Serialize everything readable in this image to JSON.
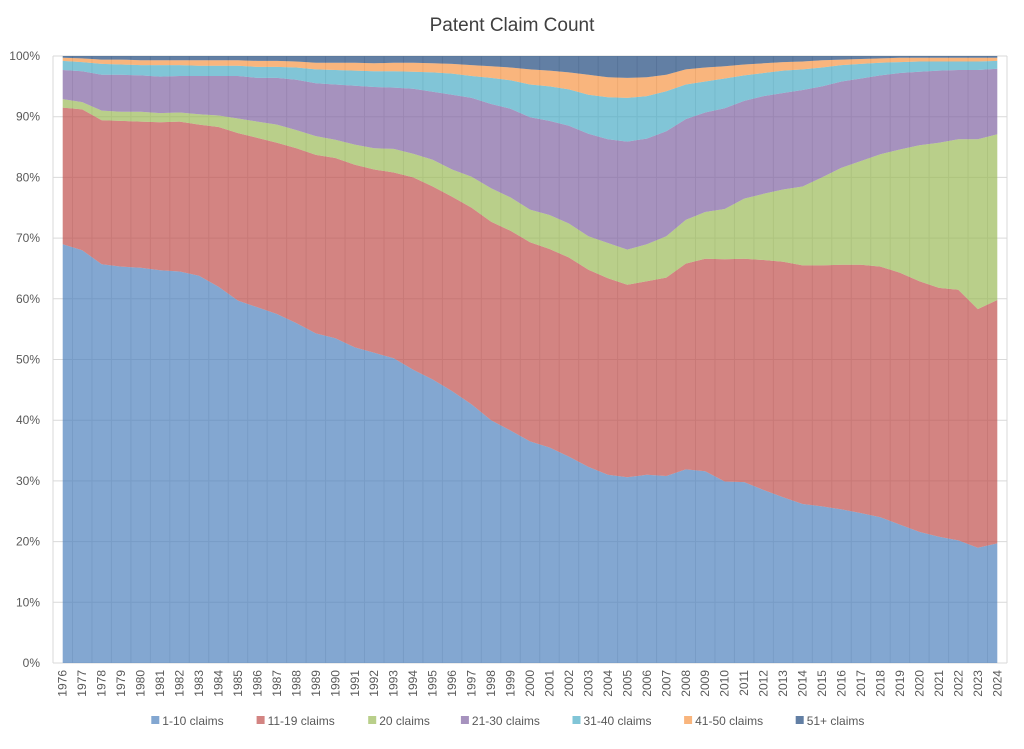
{
  "chart_data": {
    "type": "area",
    "stacked": "percent",
    "title": "Patent Claim Count",
    "xlabel": "",
    "ylabel": "",
    "ylim": [
      0,
      100
    ],
    "y_ticks": [
      "0%",
      "10%",
      "20%",
      "30%",
      "40%",
      "50%",
      "60%",
      "70%",
      "80%",
      "90%",
      "100%"
    ],
    "grid": "vertical and horizontal",
    "legend_position": "bottom",
    "categories": [
      "1976",
      "1977",
      "1978",
      "1979",
      "1980",
      "1981",
      "1982",
      "1983",
      "1984",
      "1985",
      "1986",
      "1987",
      "1988",
      "1989",
      "1990",
      "1991",
      "1992",
      "1993",
      "1994",
      "1995",
      "1996",
      "1997",
      "1998",
      "1999",
      "2000",
      "2001",
      "2002",
      "2003",
      "2004",
      "2005",
      "2006",
      "2007",
      "2008",
      "2009",
      "2010",
      "2011",
      "2012",
      "2013",
      "2014",
      "2015",
      "2016",
      "2017",
      "2018",
      "2019",
      "2020",
      "2021",
      "2022",
      "2023",
      "2024"
    ],
    "series": [
      {
        "name": "1-10 claims",
        "color": "#4f81bd",
        "values": [
          69,
          68,
          65.7,
          65.3,
          65.1,
          64.7,
          64.5,
          63.8,
          62,
          59.7,
          58.6,
          57.5,
          56,
          54.3,
          53.5,
          52,
          51.1,
          50.2,
          48.3,
          46.7,
          44.8,
          42.6,
          40,
          38.3,
          36.5,
          35.5,
          34,
          32.3,
          31,
          30.6,
          31,
          30.8,
          31.9,
          31.6,
          29.9,
          29.8,
          28.5,
          27.3,
          26.2,
          25.8,
          25.3,
          24.7,
          24,
          22.8,
          21.6,
          20.8,
          20.2,
          19,
          19.7
        ]
      },
      {
        "name": "11-19 claims",
        "color": "#c0504d",
        "values": [
          22.5,
          23.2,
          23.7,
          24.0,
          24.1,
          24.4,
          24.7,
          24.9,
          26.3,
          27.6,
          27.9,
          28.2,
          28.8,
          29.4,
          29.7,
          30.1,
          30.2,
          30.6,
          31.7,
          31.8,
          32.0,
          32.4,
          32.7,
          32.9,
          32.8,
          32.7,
          32.8,
          32.5,
          32.4,
          31.7,
          31.9,
          32.7,
          33.9,
          35.0,
          36.6,
          36.8,
          37.9,
          38.8,
          39.3,
          39.7,
          40.3,
          40.9,
          41.3,
          41.5,
          41.3,
          41.0,
          41.3,
          39.3,
          40.1
        ]
      },
      {
        "name": "20 claims",
        "color": "#9bbb59",
        "values": [
          1.4,
          1.2,
          1.6,
          1.5,
          1.6,
          1.5,
          1.5,
          1.7,
          1.9,
          2.4,
          2.7,
          3.0,
          3.0,
          3.1,
          3.0,
          3.3,
          3.5,
          3.9,
          3.9,
          4.4,
          4.5,
          5.1,
          5.5,
          5.5,
          5.4,
          5.6,
          5.6,
          5.5,
          5.8,
          5.8,
          6.1,
          6.8,
          7.2,
          7.7,
          8.3,
          9.9,
          10.9,
          11.9,
          13.0,
          14.5,
          16.0,
          17.1,
          18.5,
          20.3,
          22.4,
          23.9,
          24.8,
          28.0,
          27.3
        ]
      },
      {
        "name": "21-30 claims",
        "color": "#8064a2",
        "values": [
          4.8,
          5.1,
          5.9,
          6.1,
          6.0,
          6.0,
          6.0,
          6.3,
          6.5,
          7.0,
          7.2,
          7.7,
          8.3,
          8.7,
          9.1,
          9.7,
          10.1,
          10.1,
          10.7,
          11.2,
          12.3,
          13.0,
          13.9,
          14.6,
          15.2,
          15.5,
          16.1,
          16.9,
          17.1,
          17.8,
          17.4,
          17.3,
          16.6,
          16.4,
          16.6,
          16.1,
          16.1,
          15.9,
          15.9,
          15.0,
          14.2,
          13.6,
          13.0,
          12.6,
          12.1,
          11.9,
          11.4,
          11.4,
          10.8
        ]
      },
      {
        "name": "31-40 claims",
        "color": "#4bacc6",
        "values": [
          1.5,
          1.5,
          1.8,
          1.7,
          1.7,
          1.9,
          1.8,
          1.7,
          1.7,
          1.7,
          1.8,
          1.8,
          2.0,
          2.3,
          2.4,
          2.5,
          2.6,
          2.7,
          2.8,
          3.2,
          3.5,
          3.6,
          4.3,
          4.7,
          5.4,
          5.7,
          6.0,
          6.4,
          6.9,
          7.2,
          7.0,
          6.6,
          5.7,
          5.1,
          4.9,
          4.2,
          3.8,
          3.7,
          3.4,
          3.1,
          2.7,
          2.4,
          2.1,
          1.8,
          1.7,
          1.5,
          1.4,
          1.4,
          1.3
        ]
      },
      {
        "name": "41-50 claims",
        "color": "#f79646",
        "values": [
          0.5,
          0.6,
          0.7,
          0.8,
          0.8,
          0.8,
          0.8,
          0.9,
          0.9,
          0.9,
          1.0,
          1.0,
          1.0,
          1.1,
          1.2,
          1.3,
          1.3,
          1.4,
          1.5,
          1.5,
          1.6,
          1.8,
          1.9,
          2.1,
          2.5,
          2.6,
          2.8,
          3.3,
          3.3,
          3.3,
          3.1,
          2.7,
          2.5,
          2.3,
          2.0,
          1.8,
          1.6,
          1.4,
          1.3,
          1.2,
          0.9,
          0.8,
          0.7,
          0.7,
          0.6,
          0.6,
          0.6,
          0.6,
          0.5
        ]
      },
      {
        "name": "51+ claims",
        "color": "#1f497d",
        "values": [
          0.3,
          0.4,
          0.6,
          0.6,
          0.7,
          0.7,
          0.7,
          0.7,
          0.7,
          0.7,
          0.8,
          0.8,
          0.9,
          1.1,
          1.1,
          1.1,
          1.2,
          1.1,
          1.1,
          1.2,
          1.3,
          1.5,
          1.7,
          1.9,
          2.2,
          2.4,
          2.7,
          3.1,
          3.5,
          3.6,
          3.5,
          3.1,
          2.2,
          1.9,
          1.7,
          1.4,
          1.2,
          1.0,
          0.9,
          0.7,
          0.6,
          0.5,
          0.4,
          0.3,
          0.3,
          0.3,
          0.3,
          0.3,
          0.3
        ]
      }
    ]
  }
}
